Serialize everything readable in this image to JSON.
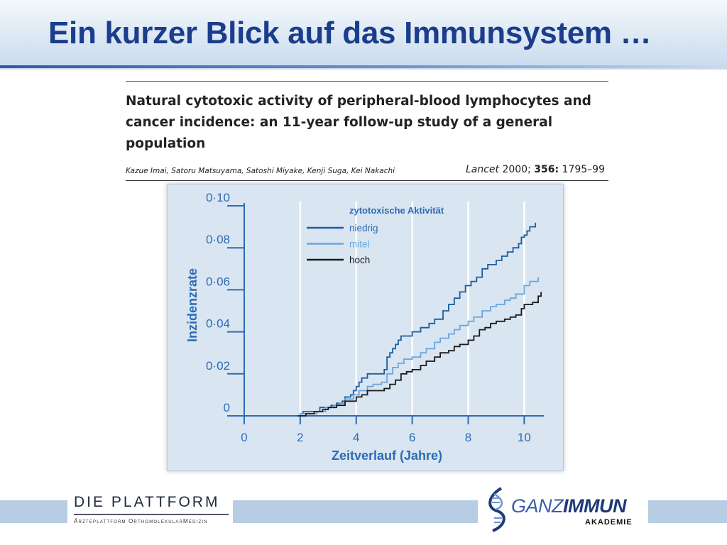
{
  "slide": {
    "title": "Ein kurzer Blick auf das Immunsystem …"
  },
  "paper": {
    "title": "Natural cytotoxic activity of peripheral-blood lymphocytes and cancer incidence: an 11-year follow-up study of a general population",
    "authors": "Kazue Imai, Satoru Matsuyama, Satoshi Miyake, Kenji Suga, Kei Nakachi",
    "journal": "Lancet",
    "year": "2000;",
    "volume": "356:",
    "pages": "1795–99"
  },
  "chart_data": {
    "type": "line",
    "title": "",
    "xlabel": "Zeitverlauf (Jahre)",
    "ylabel": "Inzidenzrate",
    "xlim": [
      0,
      10.7
    ],
    "ylim": [
      0,
      0.1
    ],
    "x_ticks": [
      0,
      2,
      4,
      6,
      8,
      10
    ],
    "x_tick_labels": [
      "0",
      "2",
      "4",
      "6",
      "8",
      "10"
    ],
    "y_ticks": [
      0,
      0.02,
      0.04,
      0.06,
      0.08,
      0.1
    ],
    "y_tick_labels": [
      "0",
      "0·02",
      "0·04",
      "0·06",
      "0·08",
      "0·10"
    ],
    "vertical_grid": [
      2,
      4,
      6,
      8,
      10
    ],
    "legend": {
      "title": "zytotoxische Aktivität",
      "placement": "top-left"
    },
    "series": [
      {
        "name": "niedrig",
        "color": "#1f5c9e",
        "points": [
          [
            1.9,
            0
          ],
          [
            2.0,
            0.001
          ],
          [
            2.1,
            0.002
          ],
          [
            2.6,
            0.002
          ],
          [
            2.7,
            0.004
          ],
          [
            3.0,
            0.004
          ],
          [
            3.1,
            0.005
          ],
          [
            3.3,
            0.006
          ],
          [
            3.5,
            0.007
          ],
          [
            3.6,
            0.009
          ],
          [
            3.8,
            0.01
          ],
          [
            3.9,
            0.012
          ],
          [
            4.0,
            0.014
          ],
          [
            4.1,
            0.016
          ],
          [
            4.2,
            0.018
          ],
          [
            4.4,
            0.02
          ],
          [
            4.8,
            0.02
          ],
          [
            5.0,
            0.022
          ],
          [
            5.1,
            0.028
          ],
          [
            5.2,
            0.03
          ],
          [
            5.3,
            0.032
          ],
          [
            5.4,
            0.034
          ],
          [
            5.5,
            0.036
          ],
          [
            5.6,
            0.038
          ],
          [
            6.0,
            0.04
          ],
          [
            6.2,
            0.04
          ],
          [
            6.3,
            0.042
          ],
          [
            6.6,
            0.044
          ],
          [
            6.8,
            0.046
          ],
          [
            7.1,
            0.05
          ],
          [
            7.3,
            0.053
          ],
          [
            7.5,
            0.056
          ],
          [
            7.7,
            0.059
          ],
          [
            7.9,
            0.062
          ],
          [
            8.1,
            0.064
          ],
          [
            8.3,
            0.066
          ],
          [
            8.5,
            0.07
          ],
          [
            8.7,
            0.072
          ],
          [
            9.0,
            0.074
          ],
          [
            9.2,
            0.076
          ],
          [
            9.4,
            0.078
          ],
          [
            9.6,
            0.08
          ],
          [
            9.8,
            0.082
          ],
          [
            9.9,
            0.085
          ],
          [
            10.0,
            0.086
          ],
          [
            10.1,
            0.088
          ],
          [
            10.2,
            0.09
          ],
          [
            10.4,
            0.092
          ]
        ]
      },
      {
        "name": "mitel",
        "color": "#6aa6dc",
        "points": [
          [
            1.9,
            0
          ],
          [
            2.0,
            0.001
          ],
          [
            2.6,
            0.002
          ],
          [
            2.9,
            0.004
          ],
          [
            3.2,
            0.005
          ],
          [
            3.4,
            0.006
          ],
          [
            3.6,
            0.008
          ],
          [
            3.9,
            0.01
          ],
          [
            4.1,
            0.012
          ],
          [
            4.4,
            0.014
          ],
          [
            4.6,
            0.015
          ],
          [
            4.9,
            0.016
          ],
          [
            5.1,
            0.02
          ],
          [
            5.3,
            0.023
          ],
          [
            5.5,
            0.025
          ],
          [
            5.7,
            0.027
          ],
          [
            6.0,
            0.028
          ],
          [
            6.3,
            0.03
          ],
          [
            6.5,
            0.032
          ],
          [
            6.8,
            0.035
          ],
          [
            7.0,
            0.037
          ],
          [
            7.3,
            0.039
          ],
          [
            7.5,
            0.041
          ],
          [
            7.7,
            0.043
          ],
          [
            8.0,
            0.045
          ],
          [
            8.2,
            0.047
          ],
          [
            8.5,
            0.05
          ],
          [
            8.8,
            0.052
          ],
          [
            9.0,
            0.053
          ],
          [
            9.3,
            0.055
          ],
          [
            9.5,
            0.056
          ],
          [
            9.7,
            0.058
          ],
          [
            10.0,
            0.062
          ],
          [
            10.2,
            0.064
          ],
          [
            10.5,
            0.066
          ]
        ]
      },
      {
        "name": "hoch",
        "color": "#1a1a1a",
        "points": [
          [
            1.9,
            0
          ],
          [
            2.2,
            0.001
          ],
          [
            2.5,
            0.002
          ],
          [
            2.8,
            0.003
          ],
          [
            3.0,
            0.004
          ],
          [
            3.3,
            0.005
          ],
          [
            3.6,
            0.007
          ],
          [
            4.0,
            0.009
          ],
          [
            4.2,
            0.01
          ],
          [
            4.4,
            0.012
          ],
          [
            4.8,
            0.012
          ],
          [
            5.0,
            0.013
          ],
          [
            5.2,
            0.015
          ],
          [
            5.4,
            0.017
          ],
          [
            5.6,
            0.02
          ],
          [
            5.8,
            0.021
          ],
          [
            6.0,
            0.022
          ],
          [
            6.3,
            0.024
          ],
          [
            6.5,
            0.026
          ],
          [
            6.8,
            0.028
          ],
          [
            7.0,
            0.03
          ],
          [
            7.3,
            0.031
          ],
          [
            7.5,
            0.033
          ],
          [
            7.7,
            0.034
          ],
          [
            8.0,
            0.036
          ],
          [
            8.2,
            0.038
          ],
          [
            8.4,
            0.041
          ],
          [
            8.6,
            0.042
          ],
          [
            8.8,
            0.044
          ],
          [
            9.0,
            0.045
          ],
          [
            9.3,
            0.046
          ],
          [
            9.5,
            0.047
          ],
          [
            9.7,
            0.048
          ],
          [
            9.9,
            0.051
          ],
          [
            10.0,
            0.053
          ],
          [
            10.3,
            0.054
          ],
          [
            10.5,
            0.057
          ],
          [
            10.6,
            0.059
          ]
        ]
      }
    ],
    "axis_color": "#2c6cb5",
    "series_label_colors": [
      "#2c6cb5",
      "#6aa6dc",
      "#1a1a1a"
    ]
  },
  "footer": {
    "left_logo_name": "DIE PLATTFORM",
    "left_logo_sub": "Ärzteplattform OrthomolekularMedizin",
    "right_logo_name_bold": "GANZ",
    "right_logo_name_rest": "IMMUN",
    "right_logo_sub": "AKADEMIE"
  }
}
